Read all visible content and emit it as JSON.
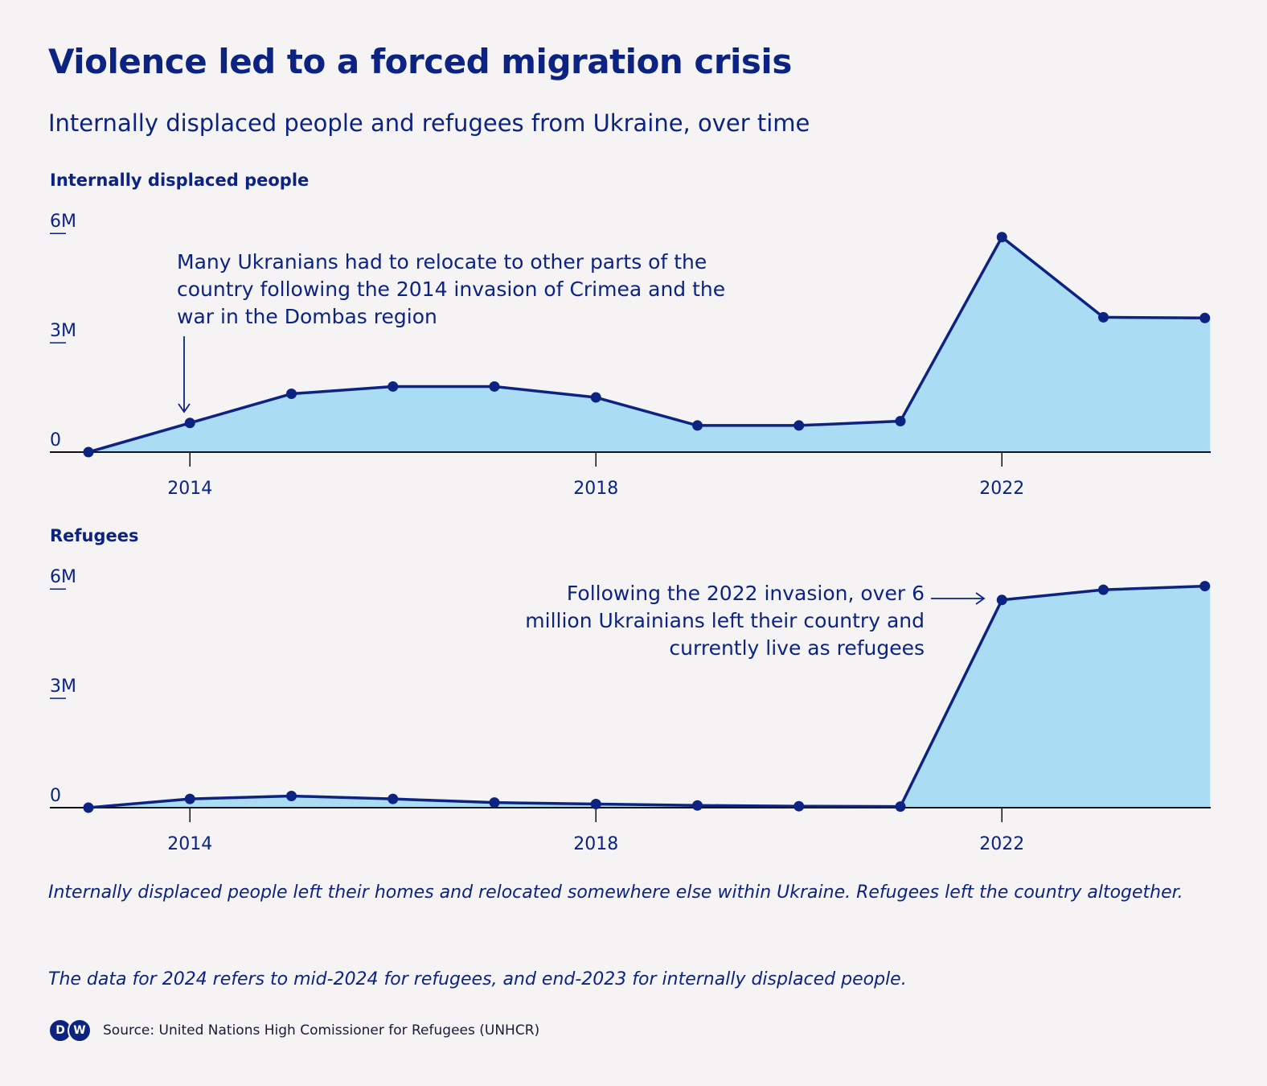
{
  "header": {
    "title": "Violence led to a forced migration crisis",
    "subtitle": "Internally displaced people and refugees from Ukraine, over time"
  },
  "colors": {
    "line": "#0c2382",
    "fill": "#aadcf4",
    "text": "#0c2382",
    "background": "#f5f3f4"
  },
  "chart_data": [
    {
      "type": "area",
      "title": "Internally displaced people",
      "x": [
        2013,
        2014,
        2015,
        2016,
        2017,
        2018,
        2019,
        2020,
        2021,
        2022,
        2023,
        2024
      ],
      "values": [
        0,
        0.8,
        1.6,
        1.8,
        1.8,
        1.5,
        0.73,
        0.73,
        0.85,
        5.9,
        3.7,
        3.68
      ],
      "xticks": [
        "2014",
        "2018",
        "2022"
      ],
      "xtick_values": [
        2014,
        2018,
        2022
      ],
      "yticks": [
        "6M",
        "3M",
        "0"
      ],
      "ytick_values": [
        6,
        3,
        0
      ],
      "ylim": [
        0,
        6.5
      ],
      "xlim": [
        2013,
        2024.05
      ],
      "annotation": {
        "text_lines": [
          "Many Ukranians had to relocate to other parts of the",
          "country following the 2014 invasion of Crimea and the",
          "war in the Dombas region"
        ],
        "target_x": 2014
      }
    },
    {
      "type": "area",
      "title": "Refugees",
      "x": [
        2013,
        2014,
        2015,
        2016,
        2017,
        2018,
        2019,
        2020,
        2021,
        2022,
        2023,
        2024
      ],
      "values": [
        0,
        0.24,
        0.32,
        0.24,
        0.14,
        0.1,
        0.06,
        0.04,
        0.03,
        5.7,
        5.98,
        6.08
      ],
      "xticks": [
        "2014",
        "2018",
        "2022"
      ],
      "xtick_values": [
        2014,
        2018,
        2022
      ],
      "yticks": [
        "6M",
        "3M",
        "0"
      ],
      "ytick_values": [
        6,
        3,
        0
      ],
      "ylim": [
        0,
        6.5
      ],
      "xlim": [
        2013,
        2024.05
      ],
      "annotation": {
        "text_lines": [
          "Following the 2022 invasion, over 6",
          "million Ukrainians left their country and",
          "currently live as refugees"
        ],
        "target_x": 2022
      }
    }
  ],
  "notes": [
    "Internally displaced people left their homes and relocated somewhere else within Ukraine. Refugees left the country altogether.",
    "The data for 2024 refers to mid-2024 for refugees, and end-2023 for internally displaced people."
  ],
  "source": {
    "logo_letters": [
      "D",
      "W"
    ],
    "text": "Source: United Nations High Comissioner for Refugees (UNHCR)"
  }
}
